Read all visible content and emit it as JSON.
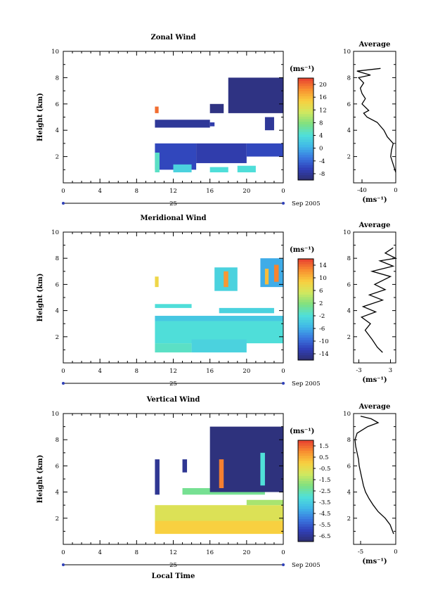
{
  "chart_data": [
    {
      "type": "heatmap",
      "title": "Zonal Wind",
      "ylabel": "Height (km)",
      "xlim": [
        0,
        24
      ],
      "ylim": [
        0,
        10
      ],
      "xticks": [
        "0",
        "4",
        "8",
        "12",
        "16",
        "20",
        "0"
      ],
      "yticks": [
        "2",
        "4",
        "6",
        "8",
        "10"
      ],
      "day_label": "25",
      "date_label": "Sep 2005",
      "colorbar": {
        "unit": "(ms⁻¹)",
        "labels": [
          "-8",
          "-4",
          "0",
          "4",
          "8",
          "12",
          "16",
          "20"
        ],
        "vmin": -10,
        "vmax": 22
      },
      "cells": [
        [
          10,
          14.5,
          1,
          3,
          -6
        ],
        [
          14.5,
          20,
          1.5,
          3,
          -7
        ],
        [
          20,
          24,
          2,
          3,
          -6
        ],
        [
          10,
          10.5,
          0.8,
          2.3,
          5
        ],
        [
          12,
          14,
          0.8,
          1.4,
          3
        ],
        [
          16,
          18,
          0.8,
          1.2,
          4
        ],
        [
          19,
          21,
          0.8,
          1.3,
          4
        ],
        [
          10,
          16,
          4.2,
          4.8,
          -8
        ],
        [
          16,
          16.5,
          4.3,
          4.6,
          -7
        ],
        [
          10,
          10.4,
          5.3,
          5.8,
          20
        ],
        [
          16,
          17.5,
          5.3,
          6,
          -9
        ],
        [
          18,
          24,
          5.3,
          8,
          -9
        ],
        [
          22,
          23,
          4,
          5,
          -8
        ]
      ],
      "average": {
        "title": "Average",
        "xlim": [
          -50,
          0
        ],
        "xticks": [
          "-40",
          "0"
        ],
        "yticks": [
          "2",
          "4",
          "6",
          "8",
          "10"
        ],
        "xlabel": "(ms⁻¹)",
        "profile": [
          [
            0,
            0.8
          ],
          [
            -2,
            1.2
          ],
          [
            -4,
            1.6
          ],
          [
            -6,
            2
          ],
          [
            -5,
            2.5
          ],
          [
            -3,
            3
          ],
          [
            -10,
            3.5
          ],
          [
            -14,
            4
          ],
          [
            -22,
            4.6
          ],
          [
            -34,
            5
          ],
          [
            -38,
            5.3
          ],
          [
            -32,
            5.5
          ],
          [
            -40,
            6
          ],
          [
            -36,
            6.4
          ],
          [
            -40,
            6.8
          ],
          [
            -42,
            7.2
          ],
          [
            -38,
            7.6
          ],
          [
            -44,
            8
          ],
          [
            -30,
            8.2
          ],
          [
            -46,
            8.5
          ],
          [
            -18,
            8.7
          ]
        ]
      }
    },
    {
      "type": "heatmap",
      "title": "Meridional Wind",
      "ylabel": "Height (km)",
      "xlim": [
        0,
        24
      ],
      "ylim": [
        0,
        10
      ],
      "xticks": [
        "0",
        "4",
        "8",
        "12",
        "16",
        "20",
        "0"
      ],
      "yticks": [
        "2",
        "4",
        "6",
        "8",
        "10"
      ],
      "day_label": "25",
      "date_label": "Sep 2005",
      "colorbar": {
        "unit": "(ms⁻¹)",
        "labels": [
          "-14",
          "-10",
          "-6",
          "-2",
          "2",
          "6",
          "10",
          "14"
        ],
        "vmin": -16,
        "vmax": 16
      },
      "cells": [
        [
          10,
          24,
          1.5,
          3.2,
          -2
        ],
        [
          10,
          14,
          0.8,
          1.5,
          -1
        ],
        [
          14,
          20,
          0.8,
          1.8,
          -3
        ],
        [
          10,
          24,
          3.2,
          3.6,
          -4
        ],
        [
          10,
          14,
          4.2,
          4.5,
          -2
        ],
        [
          17,
          23,
          3.8,
          4.2,
          -3
        ],
        [
          10,
          10.4,
          5.8,
          6.6,
          8
        ],
        [
          16.5,
          19,
          5.5,
          7.3,
          -3
        ],
        [
          17.5,
          18,
          5.8,
          7,
          12
        ],
        [
          21.5,
          24,
          5.8,
          8,
          -6
        ],
        [
          22,
          22.4,
          6,
          7.2,
          10
        ],
        [
          23,
          23.5,
          6.2,
          7.5,
          13
        ]
      ],
      "average": {
        "title": "Average",
        "xlim": [
          -4,
          4
        ],
        "xticks": [
          "-3",
          "3"
        ],
        "yticks": [
          "2",
          "4",
          "6",
          "8",
          "10"
        ],
        "xlabel": "(ms⁻¹)",
        "profile": [
          [
            1.5,
            0.8
          ],
          [
            0.5,
            1.2
          ],
          [
            -0.5,
            1.8
          ],
          [
            -1.8,
            2.5
          ],
          [
            -0.8,
            3
          ],
          [
            -2.5,
            3.5
          ],
          [
            0.2,
            3.9
          ],
          [
            -2.2,
            4.3
          ],
          [
            1.5,
            4.8
          ],
          [
            -1,
            5.2
          ],
          [
            2,
            5.6
          ],
          [
            0,
            6
          ],
          [
            3,
            6.6
          ],
          [
            -0.5,
            7
          ],
          [
            3.5,
            7.4
          ],
          [
            1,
            7.8
          ],
          [
            4,
            8
          ],
          [
            2,
            8.4
          ],
          [
            3.5,
            8.8
          ]
        ]
      }
    },
    {
      "type": "heatmap",
      "title": "Vertical Wind",
      "xlabel": "Local Time",
      "ylabel": "Height (km)",
      "xlim": [
        0,
        24
      ],
      "ylim": [
        0,
        10
      ],
      "xticks": [
        "0",
        "4",
        "8",
        "12",
        "16",
        "20",
        "0"
      ],
      "yticks": [
        "2",
        "4",
        "6",
        "8",
        "10"
      ],
      "day_label": "25",
      "date_label": "Sep 2005",
      "colorbar": {
        "unit": "(ms⁻¹)",
        "labels": [
          "-6.5",
          "-5.5",
          "-4.5",
          "-3.5",
          "-2.5",
          "-1.5",
          "-0.5",
          "0.5",
          "1.5"
        ],
        "vmin": -7,
        "vmax": 2
      },
      "cells": [
        [
          10,
          24,
          0.8,
          1.8,
          0
        ],
        [
          10,
          24,
          1.8,
          3,
          -0.7
        ],
        [
          20,
          24,
          3,
          3.4,
          -1.5
        ],
        [
          13,
          22,
          3.8,
          4.3,
          -2.2
        ],
        [
          10,
          10.5,
          3.8,
          6.5,
          -6.5
        ],
        [
          13,
          13.5,
          5.5,
          6.5,
          -6.5
        ],
        [
          16,
          24,
          4,
          9,
          -6.8
        ],
        [
          17,
          17.5,
          4.3,
          6.5,
          1.2
        ],
        [
          21.5,
          22,
          4.5,
          7,
          -3
        ]
      ],
      "average": {
        "title": "Average",
        "xlim": [
          -6,
          0
        ],
        "xticks": [
          "-5",
          "0"
        ],
        "yticks": [
          "2",
          "4",
          "6",
          "8",
          "10"
        ],
        "xlabel": "(ms⁻¹)",
        "profile": [
          [
            -0.3,
            0.8
          ],
          [
            -0.8,
            1.5
          ],
          [
            -1.5,
            2
          ],
          [
            -2.5,
            2.5
          ],
          [
            -3.2,
            3
          ],
          [
            -3.8,
            3.5
          ],
          [
            -4.3,
            4
          ],
          [
            -4.6,
            4.5
          ],
          [
            -4.8,
            5
          ],
          [
            -5,
            5.5
          ],
          [
            -5.2,
            6
          ],
          [
            -5.3,
            6.5
          ],
          [
            -5.5,
            7
          ],
          [
            -5.7,
            7.5
          ],
          [
            -5.8,
            8
          ],
          [
            -5.5,
            8.5
          ],
          [
            -4,
            9
          ],
          [
            -2.5,
            9.3
          ],
          [
            -3.5,
            9.6
          ],
          [
            -5,
            9.8
          ]
        ]
      }
    }
  ]
}
